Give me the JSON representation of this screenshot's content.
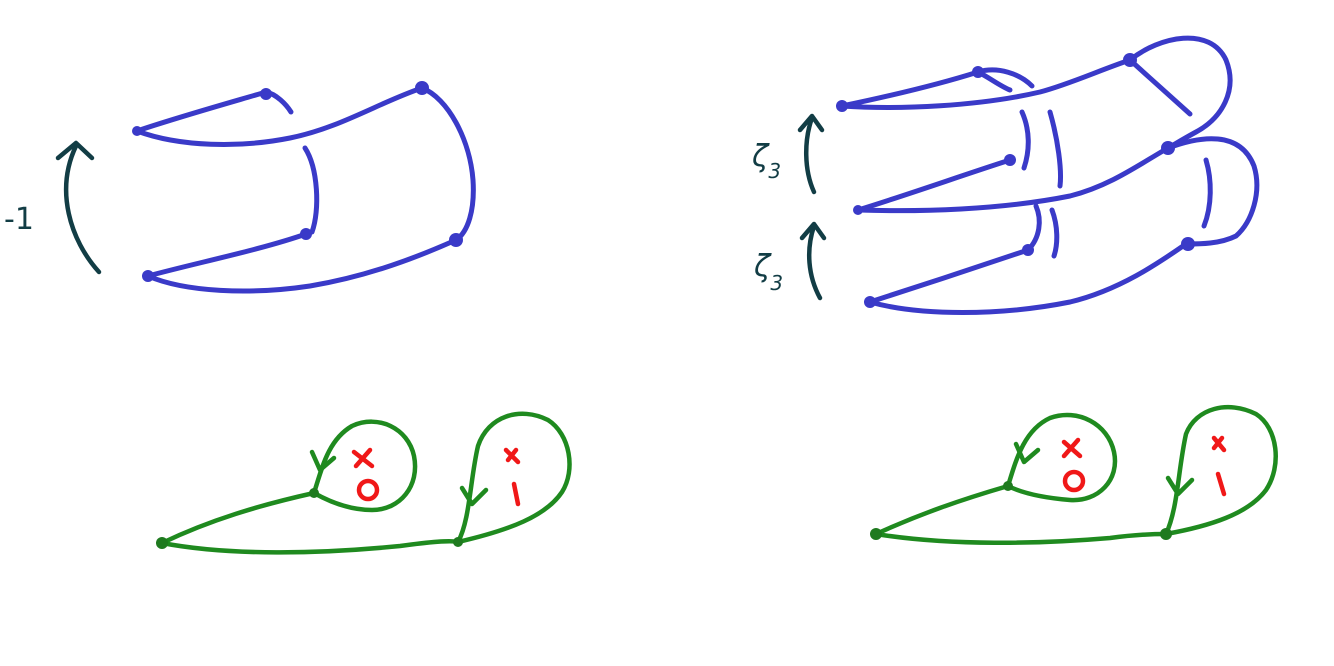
{
  "left_panel": {
    "monodromy_label": "-1"
  },
  "right_panel": {
    "upper_label": "ζ",
    "upper_sub": "3",
    "lower_label": "ζ",
    "lower_sub": "3"
  },
  "colors": {
    "sheets": "#3a3ac8",
    "arrows": "#123d45",
    "loops": "#1f8a1f",
    "markings": "#f01818"
  },
  "markings": {
    "left_first": {
      "top": "x",
      "bottom": "0"
    },
    "left_second": {
      "top": "x",
      "bottom": "1"
    },
    "right_first": {
      "top": "x",
      "bottom": "0"
    },
    "right_second": {
      "top": "x",
      "bottom": "1"
    }
  }
}
